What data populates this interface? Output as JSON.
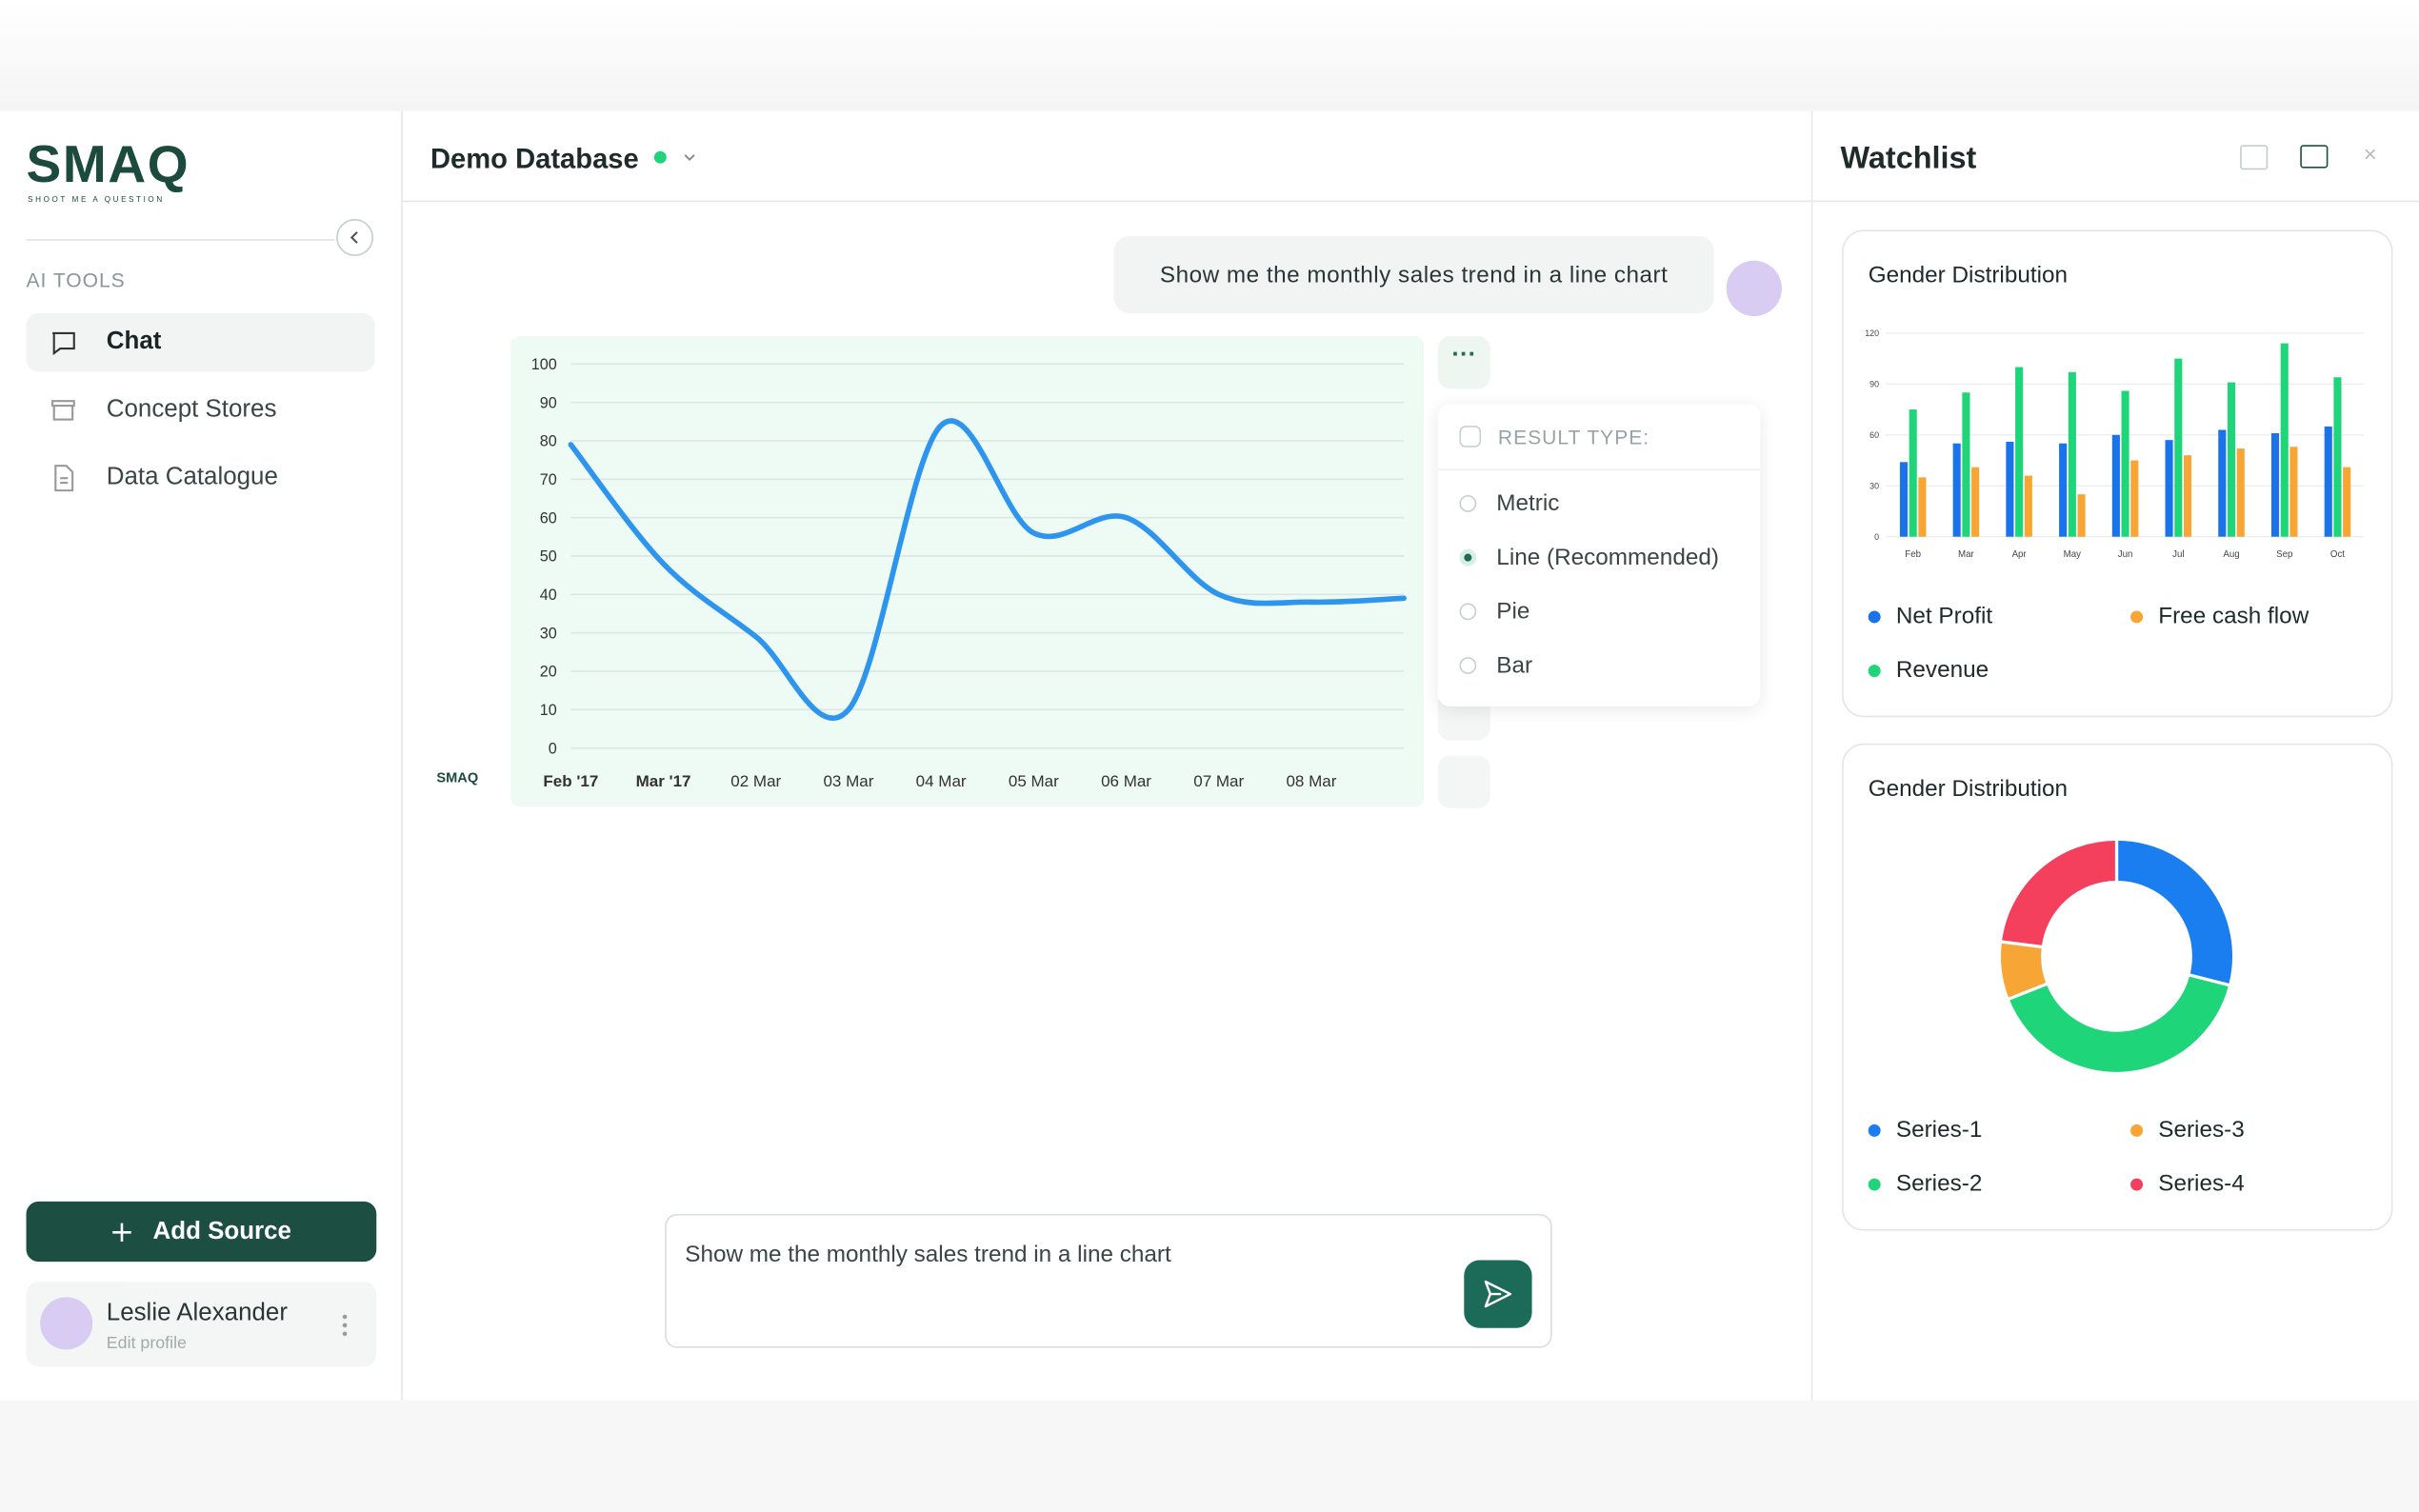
{
  "sidebar": {
    "logo": "SMAQ",
    "tagline": "SHOOT ME A QUESTION",
    "section": "AI TOOLS",
    "nav": [
      "Chat",
      "Concept Stores",
      "Data Catalogue"
    ],
    "active": 0,
    "add_button": "Add Source",
    "user": {
      "name": "Leslie Alexander",
      "link": "Edit profile"
    }
  },
  "header": {
    "title": "Demo Database"
  },
  "chat": {
    "user_message": "Show me the monthly sales trend in a line chart",
    "bot_label": "SMAQ",
    "chart": {
      "type": "line",
      "categories": [
        "Feb '17",
        "Mar '17",
        "02 Mar",
        "03 Mar",
        "04 Mar",
        "05 Mar",
        "06 Mar",
        "07 Mar",
        "08 Mar",
        null
      ],
      "values": [
        79,
        48,
        29,
        10,
        84,
        56,
        60,
        40,
        38,
        39
      ],
      "color": "#2e95ee",
      "ylim": [
        0,
        100
      ],
      "yticks": [
        0,
        10,
        20,
        30,
        40,
        50,
        60,
        70,
        80,
        90,
        100
      ],
      "grid": true
    },
    "result_menu": {
      "title": "RESULT TYPE:",
      "options": [
        "Metric",
        "Line (Recommended)",
        "Pie",
        "Bar"
      ],
      "selected": 1
    },
    "input": "Show me the monthly sales trend in a line chart"
  },
  "watchlist": {
    "title": "Watchlist",
    "cards": [
      {
        "title": "Gender Distribution",
        "chart": {
          "type": "bar",
          "categories": [
            "Feb",
            "Mar",
            "Apr",
            "May",
            "Jun",
            "Jul",
            "Aug",
            "Sep",
            "Oct"
          ],
          "series": [
            {
              "name": "Net Profit",
              "color": "#1a73e8",
              "values": [
                44,
                55,
                56,
                55,
                60,
                57,
                63,
                61,
                65
              ]
            },
            {
              "name": "Revenue",
              "color": "#1ed57a",
              "values": [
                75,
                85,
                100,
                97,
                86,
                105,
                91,
                114,
                94
              ]
            },
            {
              "name": "Free cash flow",
              "color": "#f7a534",
              "values": [
                35,
                41,
                36,
                25,
                45,
                48,
                52,
                53,
                41
              ]
            }
          ],
          "ylim": [
            0,
            120
          ],
          "yticks": [
            0,
            30,
            60,
            90,
            120
          ],
          "grid": true
        }
      },
      {
        "title": "Gender Distribution",
        "chart": {
          "type": "donut",
          "series": [
            {
              "name": "Series-1",
              "color": "#1a7ef0",
              "value": 29
            },
            {
              "name": "Series-2",
              "color": "#1ed57a",
              "value": 40
            },
            {
              "name": "Series-3",
              "color": "#f7a534",
              "value": 8
            },
            {
              "name": "Series-4",
              "color": "#f4405c",
              "value": 23
            }
          ]
        }
      }
    ]
  }
}
